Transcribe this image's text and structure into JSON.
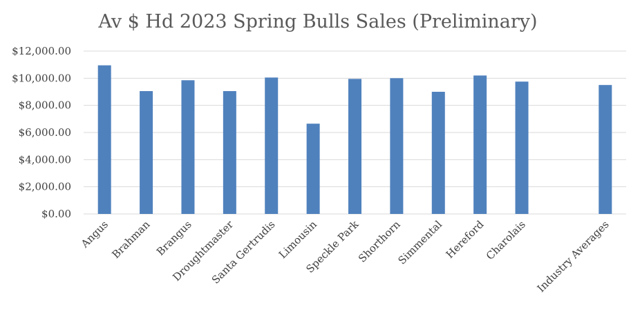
{
  "chart_data": {
    "type": "bar",
    "title": "Av $ Hd 2023 Spring Bulls Sales (Preliminary)",
    "xlabel": "",
    "ylabel": "",
    "categories": [
      "Angus",
      "Brahman",
      "Brangus",
      "Droughtmaster",
      "Santa Gertrudis",
      "Limousin",
      "Speckle Park",
      "Shorthorn",
      "Simmental",
      "Hereford",
      "Charolais",
      "",
      "Industry Averages"
    ],
    "values": [
      10950,
      9050,
      9850,
      9050,
      10050,
      6650,
      9950,
      10000,
      9000,
      10200,
      9750,
      null,
      9500
    ],
    "ylim": [
      0,
      12000
    ],
    "yticks": [
      "$0.00",
      "$2,000.00",
      "$4,000.00",
      "$6,000.00",
      "$8,000.00",
      "$10,000.00",
      "$12,000.00"
    ],
    "grid": true,
    "legend": "none",
    "bar_color": "#4f81bd"
  }
}
